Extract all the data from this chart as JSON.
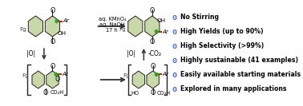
{
  "background_color": "#ffffff",
  "bullet_color": "#4466cc",
  "bullet_points": [
    "No Stirring",
    "High Yields (up to 90%)",
    "High Selectivity (>99%)",
    "Highly sustainable (41 examples)",
    "Easily available starting materials",
    "Explored in many applications"
  ],
  "reagent_text_line1": "aq. KMnO₄",
  "reagent_text_line2": "aq. NaOH",
  "reagent_text_line3": "17 h",
  "oxidation_label": "|O|",
  "co2_label": "-CO₂",
  "green_fill": "#c8d8a8",
  "green_fill2": "#b8cc98",
  "red_color": "#cc2200",
  "dark_red": "#aa1100",
  "fg_color": "#444444",
  "bond_color": "#222222",
  "arrow_color": "#333333",
  "label_fontsize": 5.8,
  "small_fontsize": 5.2,
  "bullet_fontsize": 5.6,
  "ox_fontsize": 5.5,
  "reagent_fontsize": 4.8
}
